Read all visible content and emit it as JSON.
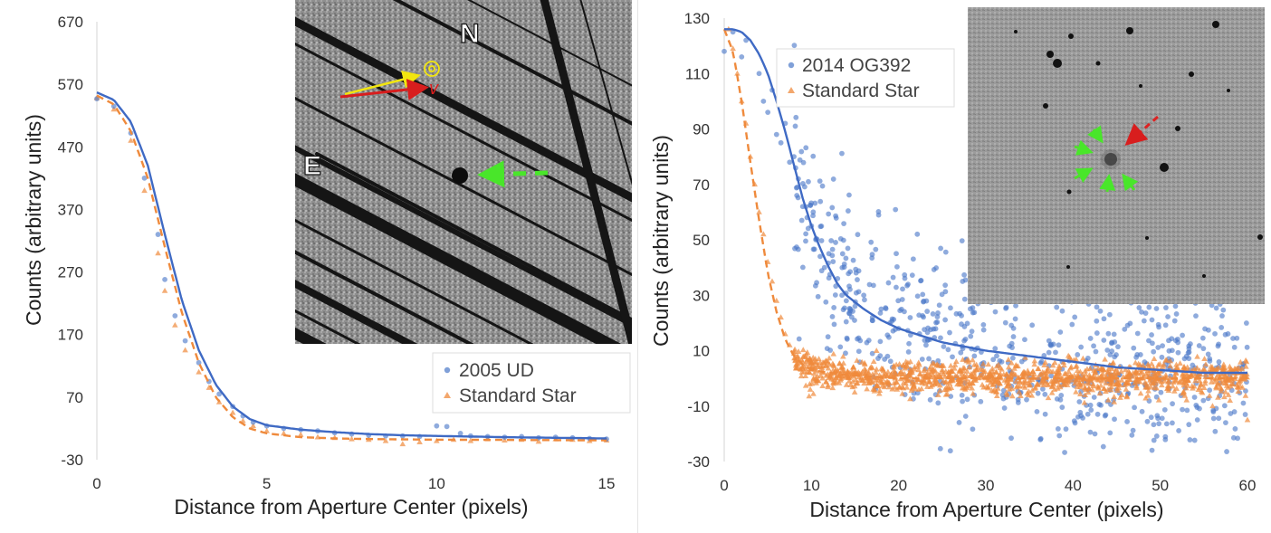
{
  "chart_data": [
    {
      "type": "scatter",
      "xlabel": "Distance from Aperture Center (pixels)",
      "ylabel": "Counts (arbitrary units)",
      "xlim": [
        0,
        15
      ],
      "ylim": [
        -30,
        670
      ],
      "x_ticks": [
        "0",
        "5",
        "10",
        "15"
      ],
      "y_ticks": [
        "670",
        "570",
        "470",
        "370",
        "270",
        "170",
        "70",
        "-30"
      ],
      "grid": false,
      "legend_position": "lower-right",
      "series": [
        {
          "name": "2005 UD",
          "marker": "circle",
          "color": "#4a78c8",
          "points": [
            [
              0,
              547
            ],
            [
              0.5,
              535
            ],
            [
              1,
              492
            ],
            [
              1.4,
              420
            ],
            [
              1.8,
              330
            ],
            [
              2,
              258
            ],
            [
              2.3,
              200
            ],
            [
              2.6,
              160
            ],
            [
              3,
              125
            ],
            [
              3.3,
              95
            ],
            [
              3.6,
              75
            ],
            [
              4,
              55
            ],
            [
              4.3,
              40
            ],
            [
              4.6,
              30
            ],
            [
              5,
              24
            ],
            [
              5.5,
              20
            ],
            [
              6,
              18
            ],
            [
              6.5,
              16
            ],
            [
              7,
              13
            ],
            [
              7.5,
              11
            ],
            [
              8,
              9
            ],
            [
              8.5,
              8
            ],
            [
              9,
              8
            ],
            [
              9.5,
              7
            ],
            [
              10,
              24
            ],
            [
              10.3,
              23
            ],
            [
              10.7,
              12
            ],
            [
              11,
              8
            ],
            [
              11.5,
              7
            ],
            [
              12,
              6
            ],
            [
              12.5,
              7
            ],
            [
              13,
              5
            ],
            [
              13.5,
              6
            ],
            [
              14,
              5
            ],
            [
              14.5,
              4
            ],
            [
              15,
              3
            ]
          ],
          "fit_line": [
            [
              0,
              557
            ],
            [
              0.5,
              545
            ],
            [
              1,
              510
            ],
            [
              1.5,
              440
            ],
            [
              2,
              330
            ],
            [
              2.5,
              225
            ],
            [
              3,
              145
            ],
            [
              3.5,
              90
            ],
            [
              4,
              55
            ],
            [
              4.5,
              35
            ],
            [
              5,
              25
            ],
            [
              6,
              18
            ],
            [
              7,
              14
            ],
            [
              8,
              11
            ],
            [
              9,
              9
            ],
            [
              10,
              8
            ],
            [
              12,
              6
            ],
            [
              15,
              4
            ]
          ]
        },
        {
          "name": "Standard Star",
          "marker": "triangle",
          "color": "#ef8a3c",
          "points": [
            [
              0,
              548
            ],
            [
              0.5,
              530
            ],
            [
              1,
              480
            ],
            [
              1.4,
              400
            ],
            [
              1.8,
              300
            ],
            [
              2,
              240
            ],
            [
              2.3,
              185
            ],
            [
              2.6,
              145
            ],
            [
              3,
              110
            ],
            [
              3.3,
              85
            ],
            [
              3.6,
              62
            ],
            [
              4,
              45
            ],
            [
              4.3,
              32
            ],
            [
              4.6,
              24
            ],
            [
              5,
              16
            ],
            [
              5.5,
              12
            ],
            [
              6,
              10
            ],
            [
              6.5,
              6
            ],
            [
              7,
              5
            ],
            [
              7.5,
              3
            ],
            [
              8,
              2
            ],
            [
              8.5,
              0
            ],
            [
              9,
              -5
            ],
            [
              9.5,
              -2
            ],
            [
              10,
              0
            ],
            [
              10.5,
              2
            ],
            [
              11,
              0
            ],
            [
              11.5,
              3
            ],
            [
              12,
              1
            ],
            [
              12.5,
              2
            ],
            [
              13,
              -1
            ],
            [
              13.5,
              3
            ],
            [
              14,
              2
            ],
            [
              14.5,
              0
            ],
            [
              15,
              1
            ]
          ],
          "fit_line": [
            [
              0,
              552
            ],
            [
              0.5,
              538
            ],
            [
              1,
              495
            ],
            [
              1.5,
              420
            ],
            [
              2,
              310
            ],
            [
              2.5,
              205
            ],
            [
              3,
              125
            ],
            [
              3.5,
              70
            ],
            [
              4,
              38
            ],
            [
              4.5,
              20
            ],
            [
              5,
              12
            ],
            [
              6,
              6
            ],
            [
              7,
              4
            ],
            [
              8,
              3
            ],
            [
              10,
              2
            ],
            [
              15,
              1
            ]
          ]
        }
      ]
    },
    {
      "type": "scatter",
      "xlabel": "Distance from Aperture Center (pixels)",
      "ylabel": "Counts (arbitrary units)",
      "xlim": [
        0,
        60
      ],
      "ylim": [
        -30,
        130
      ],
      "x_ticks": [
        "0",
        "10",
        "20",
        "30",
        "40",
        "50",
        "60"
      ],
      "y_ticks": [
        "130",
        "110",
        "90",
        "70",
        "50",
        "30",
        "10",
        "-10",
        "-30"
      ],
      "grid": false,
      "legend_position": "top-left",
      "series": [
        {
          "name": "2014 OG392",
          "marker": "circle",
          "color": "#4a78c8",
          "fit_line": [
            [
              0,
              126
            ],
            [
              1,
              126
            ],
            [
              2,
              125
            ],
            [
              3,
              122
            ],
            [
              4,
              117
            ],
            [
              5,
              110
            ],
            [
              6,
              100
            ],
            [
              7,
              89
            ],
            [
              8,
              77
            ],
            [
              9,
              65
            ],
            [
              10,
              55
            ],
            [
              11,
              47
            ],
            [
              12,
              40
            ],
            [
              13,
              34
            ],
            [
              14,
              30
            ],
            [
              16,
              25
            ],
            [
              18,
              21
            ],
            [
              20,
              18
            ],
            [
              25,
              13
            ],
            [
              30,
              10
            ],
            [
              35,
              8
            ],
            [
              40,
              6
            ],
            [
              45,
              4
            ],
            [
              50,
              3
            ],
            [
              55,
              2
            ],
            [
              60,
              2
            ]
          ],
          "points": [
            [
              0,
              118
            ],
            [
              1,
              125
            ],
            [
              2,
              116
            ],
            [
              3,
              131
            ],
            [
              2.5,
              122
            ],
            [
              4,
              110
            ],
            [
              4.5,
              100
            ],
            [
              5,
              96
            ],
            [
              5.5,
              104
            ],
            [
              6,
              88
            ],
            [
              6.5,
              85
            ],
            [
              7,
              92
            ],
            [
              7.5,
              78
            ],
            [
              8,
              80
            ],
            [
              8.5,
              72
            ],
            [
              9,
              62
            ],
            [
              9.5,
              58
            ],
            [
              10,
              55
            ],
            [
              10.5,
              50
            ],
            [
              11,
              44
            ],
            [
              11.5,
              40
            ],
            [
              12,
              45
            ],
            [
              13,
              36
            ],
            [
              13.5,
              30
            ],
            [
              14,
              28
            ],
            [
              15,
              26
            ],
            [
              16,
              30
            ],
            [
              17,
              22
            ],
            [
              18,
              25
            ],
            [
              19,
              20
            ],
            [
              20,
              18
            ]
          ],
          "scatter_band": {
            "x_from": 8,
            "x_to": 60,
            "center": "fit_line",
            "spread": 16,
            "count": 700
          }
        },
        {
          "name": "Standard Star",
          "marker": "triangle",
          "color": "#ef8a3c",
          "fit_line": [
            [
              0,
              126
            ],
            [
              1,
              118
            ],
            [
              2,
              100
            ],
            [
              3,
              78
            ],
            [
              4,
              57
            ],
            [
              5,
              38
            ],
            [
              6,
              24
            ],
            [
              7,
              14
            ],
            [
              8,
              8
            ],
            [
              9,
              5
            ],
            [
              10,
              3
            ],
            [
              12,
              2
            ],
            [
              15,
              1
            ],
            [
              20,
              0
            ],
            [
              30,
              0
            ],
            [
              40,
              0
            ],
            [
              50,
              0
            ],
            [
              60,
              0
            ]
          ],
          "points": [
            [
              0,
              131
            ],
            [
              0.5,
              126
            ],
            [
              1,
              119
            ],
            [
              1.5,
              110
            ],
            [
              2,
              100
            ],
            [
              2.5,
              92
            ],
            [
              3,
              80
            ],
            [
              3.5,
              70
            ],
            [
              4,
              60
            ],
            [
              4.5,
              52
            ],
            [
              5,
              42
            ],
            [
              5.5,
              35
            ],
            [
              6,
              28
            ],
            [
              6.5,
              22
            ],
            [
              7,
              16
            ],
            [
              7.5,
              12
            ],
            [
              8,
              9
            ],
            [
              9,
              6
            ],
            [
              10,
              4
            ],
            [
              56,
              -10
            ],
            [
              58,
              -8
            ],
            [
              60,
              -15
            ]
          ],
          "scatter_band": {
            "x_from": 8,
            "x_to": 60,
            "center": "fit_line",
            "spread": 3,
            "count": 1200
          }
        }
      ]
    }
  ],
  "insets": {
    "left": {
      "letters": [
        "N",
        "E"
      ],
      "arrow_labels": [
        "⊙",
        "v"
      ]
    },
    "right": {}
  }
}
